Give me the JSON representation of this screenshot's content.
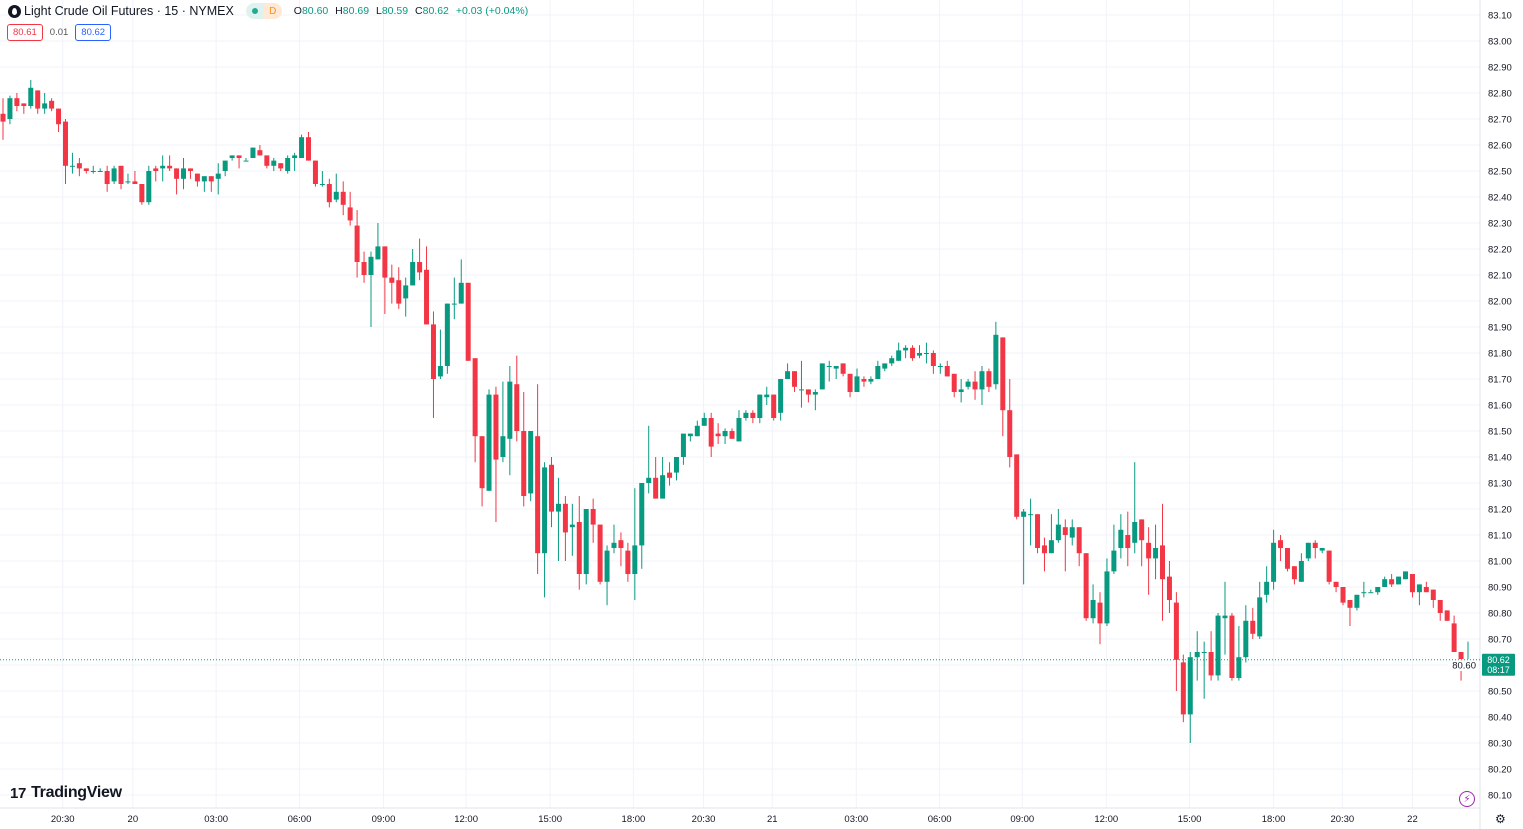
{
  "header": {
    "title": "Light Crude Oil Futures · 15 · NYMEX",
    "status_label": "D",
    "ohlc": {
      "o_label": "O",
      "o": "80.60",
      "h_label": "H",
      "h": "80.69",
      "l_label": "L",
      "l": "80.59",
      "c_label": "C",
      "c": "80.62",
      "change": "+0.03 (+0.04%)"
    },
    "sell_price": "80.61",
    "spread": "0.01",
    "buy_price": "80.62"
  },
  "brand": {
    "mark": "17",
    "name": "TradingView"
  },
  "icons": {
    "symbol": "oil-drop-icon",
    "lightning": "lightning-icon",
    "settings": "gear-icon"
  },
  "colors": {
    "up": "#089981",
    "down": "#f23645",
    "grid": "#f0f3fa",
    "last_price": "#089981"
  },
  "chart_data": {
    "type": "candlestick",
    "title": "Light Crude Oil Futures · 15 · NYMEX",
    "ylim": [
      80.1,
      83.1
    ],
    "yticks": [
      "83.10",
      "83.00",
      "82.90",
      "82.80",
      "82.70",
      "82.60",
      "82.50",
      "82.40",
      "82.30",
      "82.20",
      "82.10",
      "82.00",
      "81.90",
      "81.80",
      "81.70",
      "81.60",
      "81.50",
      "81.40",
      "81.30",
      "81.20",
      "81.10",
      "81.00",
      "80.90",
      "80.80",
      "80.70",
      "80.60",
      "80.50",
      "80.40",
      "80.30",
      "80.20",
      "80.10"
    ],
    "xticks": [
      {
        "label": "20:30",
        "bar": 8.6
      },
      {
        "label": "20",
        "bar": 18.7
      },
      {
        "label": "03:00",
        "bar": 30.7
      },
      {
        "label": "06:00",
        "bar": 42.7
      },
      {
        "label": "09:00",
        "bar": 54.8
      },
      {
        "label": "12:00",
        "bar": 66.7
      },
      {
        "label": "15:00",
        "bar": 78.8
      },
      {
        "label": "18:00",
        "bar": 90.8
      },
      {
        "label": "20:30",
        "bar": 100.9
      },
      {
        "label": "21",
        "bar": 110.8
      },
      {
        "label": "03:00",
        "bar": 122.9
      },
      {
        "label": "06:00",
        "bar": 134.9
      },
      {
        "label": "09:00",
        "bar": 146.8
      },
      {
        "label": "12:00",
        "bar": 158.9
      },
      {
        "label": "15:00",
        "bar": 170.9
      },
      {
        "label": "18:00",
        "bar": 183.0
      },
      {
        "label": "20:30",
        "bar": 192.9
      },
      {
        "label": "22",
        "bar": 203.0
      }
    ],
    "last_price": {
      "value": 80.62,
      "label": "80.62",
      "countdown": "08:17"
    },
    "candles_ohlc": [
      [
        82.72,
        82.78,
        82.62,
        82.69
      ],
      [
        82.7,
        82.79,
        82.68,
        82.78
      ],
      [
        82.78,
        82.8,
        82.73,
        82.75
      ],
      [
        82.76,
        82.76,
        82.72,
        82.75
      ],
      [
        82.75,
        82.85,
        82.74,
        82.82
      ],
      [
        82.81,
        82.81,
        82.72,
        82.74
      ],
      [
        82.74,
        82.8,
        82.72,
        82.76
      ],
      [
        82.77,
        82.78,
        82.73,
        82.74
      ],
      [
        82.74,
        82.74,
        82.65,
        82.68
      ],
      [
        82.69,
        82.7,
        82.45,
        82.52
      ],
      [
        82.52,
        82.57,
        82.49,
        82.52
      ],
      [
        82.53,
        82.55,
        82.48,
        82.51
      ],
      [
        82.51,
        82.51,
        82.49,
        82.5
      ],
      [
        82.5,
        82.52,
        82.49,
        82.5
      ],
      [
        82.5,
        82.51,
        82.5,
        82.5
      ],
      [
        82.5,
        82.52,
        82.42,
        82.45
      ],
      [
        82.46,
        82.52,
        82.45,
        82.51
      ],
      [
        82.52,
        82.52,
        82.43,
        82.45
      ],
      [
        82.46,
        82.49,
        82.45,
        82.46
      ],
      [
        82.46,
        82.5,
        82.45,
        82.45
      ],
      [
        82.45,
        82.45,
        82.37,
        82.38
      ],
      [
        82.38,
        82.52,
        82.37,
        82.5
      ],
      [
        82.51,
        82.52,
        82.46,
        82.5
      ],
      [
        82.51,
        82.56,
        82.46,
        82.52
      ],
      [
        82.52,
        82.56,
        82.5,
        82.51
      ],
      [
        82.51,
        82.51,
        82.41,
        82.47
      ],
      [
        82.47,
        82.55,
        82.43,
        82.51
      ],
      [
        82.51,
        82.51,
        82.47,
        82.5
      ],
      [
        82.49,
        82.49,
        82.44,
        82.46
      ],
      [
        82.46,
        82.48,
        82.42,
        82.48
      ],
      [
        82.48,
        82.48,
        82.42,
        82.46
      ],
      [
        82.47,
        82.53,
        82.41,
        82.49
      ],
      [
        82.5,
        82.54,
        82.48,
        82.54
      ],
      [
        82.55,
        82.56,
        82.54,
        82.56
      ],
      [
        82.56,
        82.56,
        82.51,
        82.55
      ],
      [
        82.54,
        82.55,
        82.54,
        82.54
      ],
      [
        82.55,
        82.59,
        82.55,
        82.59
      ],
      [
        82.58,
        82.6,
        82.56,
        82.56
      ],
      [
        82.56,
        82.56,
        82.51,
        82.52
      ],
      [
        82.52,
        82.55,
        82.5,
        82.54
      ],
      [
        82.53,
        82.53,
        82.5,
        82.51
      ],
      [
        82.5,
        82.56,
        82.49,
        82.55
      ],
      [
        82.55,
        82.57,
        82.5,
        82.56
      ],
      [
        82.55,
        82.64,
        82.55,
        82.63
      ],
      [
        82.63,
        82.65,
        82.54,
        82.54
      ],
      [
        82.54,
        82.54,
        82.44,
        82.45
      ],
      [
        82.45,
        82.5,
        82.44,
        82.45
      ],
      [
        82.45,
        82.47,
        82.36,
        82.38
      ],
      [
        82.39,
        82.49,
        82.38,
        82.42
      ],
      [
        82.42,
        82.46,
        82.33,
        82.37
      ],
      [
        82.36,
        82.42,
        82.29,
        82.31
      ],
      [
        82.29,
        82.35,
        82.09,
        82.15
      ],
      [
        82.15,
        82.19,
        82.07,
        82.1
      ],
      [
        82.1,
        82.19,
        81.9,
        82.17
      ],
      [
        82.16,
        82.3,
        82.16,
        82.21
      ],
      [
        82.21,
        82.21,
        81.95,
        82.09
      ],
      [
        82.09,
        82.14,
        81.99,
        82.07
      ],
      [
        82.08,
        82.13,
        81.97,
        81.99
      ],
      [
        82.01,
        82.09,
        81.94,
        82.06
      ],
      [
        82.06,
        82.2,
        82.06,
        82.15
      ],
      [
        82.15,
        82.24,
        82.08,
        82.11
      ],
      [
        82.12,
        82.21,
        81.91,
        81.91
      ],
      [
        81.91,
        81.96,
        81.55,
        81.7
      ],
      [
        81.71,
        81.89,
        81.7,
        81.75
      ],
      [
        81.75,
        81.99,
        81.72,
        81.99
      ],
      [
        81.99,
        82.09,
        81.93,
        81.99
      ],
      [
        81.99,
        82.16,
        81.99,
        82.07
      ],
      [
        82.07,
        82.07,
        81.77,
        81.77
      ],
      [
        81.78,
        81.78,
        81.38,
        81.48
      ],
      [
        81.48,
        81.48,
        81.21,
        81.28
      ],
      [
        81.27,
        81.66,
        81.27,
        81.64
      ],
      [
        81.64,
        81.67,
        81.15,
        81.39
      ],
      [
        81.4,
        81.69,
        81.38,
        81.48
      ],
      [
        81.47,
        81.75,
        81.33,
        81.69
      ],
      [
        81.68,
        81.79,
        81.46,
        81.5
      ],
      [
        81.5,
        81.65,
        81.21,
        81.25
      ],
      [
        81.26,
        81.5,
        81.23,
        81.5
      ],
      [
        81.48,
        81.68,
        80.95,
        81.03
      ],
      [
        81.03,
        81.38,
        80.86,
        81.36
      ],
      [
        81.37,
        81.4,
        81.13,
        81.19
      ],
      [
        81.19,
        81.32,
        81.0,
        81.22
      ],
      [
        81.22,
        81.25,
        81.0,
        81.11
      ],
      [
        81.13,
        81.22,
        81.02,
        81.14
      ],
      [
        81.15,
        81.25,
        80.89,
        80.95
      ],
      [
        80.95,
        81.2,
        80.91,
        81.2
      ],
      [
        81.2,
        81.24,
        81.07,
        81.14
      ],
      [
        81.14,
        81.14,
        80.91,
        80.92
      ],
      [
        80.92,
        81.06,
        80.83,
        81.04
      ],
      [
        81.05,
        81.14,
        81.03,
        81.07
      ],
      [
        81.08,
        81.11,
        80.98,
        81.05
      ],
      [
        81.04,
        81.07,
        80.92,
        80.95
      ],
      [
        80.95,
        81.28,
        80.85,
        81.06
      ],
      [
        81.06,
        81.3,
        80.97,
        81.3
      ],
      [
        81.3,
        81.52,
        81.26,
        81.32
      ],
      [
        81.32,
        81.4,
        81.24,
        81.24
      ],
      [
        81.24,
        81.4,
        81.24,
        81.33
      ],
      [
        81.34,
        81.38,
        81.29,
        81.32
      ],
      [
        81.34,
        81.4,
        81.31,
        81.4
      ],
      [
        81.4,
        81.49,
        81.37,
        81.49
      ],
      [
        81.48,
        81.49,
        81.46,
        81.49
      ],
      [
        81.48,
        81.54,
        81.48,
        81.52
      ],
      [
        81.52,
        81.57,
        81.52,
        81.55
      ],
      [
        81.55,
        81.57,
        81.4,
        81.44
      ],
      [
        81.49,
        81.53,
        81.45,
        81.48
      ],
      [
        81.48,
        81.51,
        81.45,
        81.5
      ],
      [
        81.5,
        81.51,
        81.47,
        81.47
      ],
      [
        81.46,
        81.58,
        81.46,
        81.55
      ],
      [
        81.55,
        81.58,
        81.54,
        81.57
      ],
      [
        81.57,
        81.58,
        81.53,
        81.55
      ],
      [
        81.55,
        81.64,
        81.53,
        81.64
      ],
      [
        81.63,
        81.67,
        81.6,
        81.64
      ],
      [
        81.64,
        81.64,
        81.54,
        81.55
      ],
      [
        81.57,
        81.7,
        81.54,
        81.7
      ],
      [
        81.7,
        81.76,
        81.7,
        81.73
      ],
      [
        81.73,
        81.73,
        81.65,
        81.67
      ],
      [
        81.66,
        81.77,
        81.59,
        81.66
      ],
      [
        81.66,
        81.66,
        81.61,
        81.64
      ],
      [
        81.64,
        81.66,
        81.58,
        81.65
      ],
      [
        81.66,
        81.76,
        81.66,
        81.76
      ],
      [
        81.75,
        81.77,
        81.69,
        81.75
      ],
      [
        81.74,
        81.75,
        81.7,
        81.75
      ],
      [
        81.76,
        81.76,
        81.71,
        81.72
      ],
      [
        81.72,
        81.72,
        81.63,
        81.65
      ],
      [
        81.65,
        81.74,
        81.65,
        81.71
      ],
      [
        81.7,
        81.71,
        81.67,
        81.69
      ],
      [
        81.69,
        81.71,
        81.68,
        81.7
      ],
      [
        81.7,
        81.77,
        81.7,
        81.75
      ],
      [
        81.74,
        81.76,
        81.73,
        81.76
      ],
      [
        81.76,
        81.79,
        81.75,
        81.78
      ],
      [
        81.77,
        81.84,
        81.77,
        81.81
      ],
      [
        81.81,
        81.83,
        81.78,
        81.82
      ],
      [
        81.82,
        81.83,
        81.77,
        81.78
      ],
      [
        81.79,
        81.83,
        81.78,
        81.8
      ],
      [
        81.8,
        81.84,
        81.76,
        81.8
      ],
      [
        81.8,
        81.81,
        81.72,
        81.75
      ],
      [
        81.75,
        81.76,
        81.72,
        81.75
      ],
      [
        81.75,
        81.77,
        81.71,
        81.71
      ],
      [
        81.72,
        81.72,
        81.63,
        81.65
      ],
      [
        81.65,
        81.7,
        81.61,
        81.66
      ],
      [
        81.67,
        81.7,
        81.66,
        81.69
      ],
      [
        81.69,
        81.73,
        81.62,
        81.66
      ],
      [
        81.66,
        81.75,
        81.6,
        81.73
      ],
      [
        81.73,
        81.74,
        81.65,
        81.67
      ],
      [
        81.68,
        81.92,
        81.66,
        81.87
      ],
      [
        81.86,
        81.86,
        81.48,
        81.58
      ],
      [
        81.58,
        81.7,
        81.36,
        81.4
      ],
      [
        81.41,
        81.41,
        81.16,
        81.17
      ],
      [
        81.17,
        81.2,
        80.91,
        81.19
      ],
      [
        81.18,
        81.24,
        81.06,
        81.18
      ],
      [
        81.18,
        81.18,
        81.03,
        81.05
      ],
      [
        81.06,
        81.09,
        80.96,
        81.03
      ],
      [
        81.03,
        81.18,
        81.03,
        81.08
      ],
      [
        81.08,
        81.2,
        81.07,
        81.14
      ],
      [
        81.13,
        81.16,
        80.96,
        81.1
      ],
      [
        81.09,
        81.16,
        81.06,
        81.13
      ],
      [
        81.13,
        81.13,
        80.98,
        81.03
      ],
      [
        81.03,
        81.03,
        80.77,
        80.78
      ],
      [
        80.78,
        80.91,
        80.76,
        80.85
      ],
      [
        80.84,
        80.88,
        80.68,
        80.76
      ],
      [
        80.76,
        81.01,
        80.75,
        80.96
      ],
      [
        80.96,
        81.14,
        80.95,
        81.04
      ],
      [
        81.05,
        81.18,
        81.01,
        81.12
      ],
      [
        81.1,
        81.19,
        80.98,
        81.05
      ],
      [
        81.07,
        81.38,
        81.03,
        81.15
      ],
      [
        81.16,
        81.16,
        80.98,
        81.08
      ],
      [
        81.07,
        81.13,
        80.87,
        81.01
      ],
      [
        81.01,
        81.14,
        80.93,
        81.05
      ],
      [
        81.06,
        81.22,
        80.77,
        80.93
      ],
      [
        80.94,
        81.0,
        80.8,
        80.85
      ],
      [
        80.84,
        80.88,
        80.5,
        80.62
      ],
      [
        80.61,
        80.64,
        80.38,
        80.41
      ],
      [
        80.41,
        80.65,
        80.3,
        80.63
      ],
      [
        80.63,
        80.73,
        80.54,
        80.65
      ],
      [
        80.65,
        80.69,
        80.47,
        80.65
      ],
      [
        80.65,
        80.73,
        80.54,
        80.56
      ],
      [
        80.56,
        80.8,
        80.54,
        80.79
      ],
      [
        80.78,
        80.92,
        80.64,
        80.79
      ],
      [
        80.79,
        80.8,
        80.54,
        80.55
      ],
      [
        80.55,
        80.75,
        80.54,
        80.63
      ],
      [
        80.63,
        80.83,
        80.61,
        80.77
      ],
      [
        80.77,
        80.82,
        80.7,
        80.72
      ],
      [
        80.71,
        80.92,
        80.7,
        80.86
      ],
      [
        80.87,
        80.98,
        80.84,
        80.92
      ],
      [
        80.92,
        81.12,
        80.89,
        81.07
      ],
      [
        81.08,
        81.1,
        81.0,
        81.05
      ],
      [
        81.05,
        81.05,
        80.96,
        80.97
      ],
      [
        80.98,
        80.98,
        80.91,
        80.93
      ],
      [
        80.92,
        81.03,
        80.92,
        81.0
      ],
      [
        81.01,
        81.07,
        81.0,
        81.07
      ],
      [
        81.07,
        81.08,
        81.01,
        81.05
      ],
      [
        81.04,
        81.05,
        81.03,
        81.05
      ],
      [
        81.04,
        81.04,
        80.91,
        80.92
      ],
      [
        80.92,
        80.92,
        80.88,
        80.9
      ],
      [
        80.9,
        80.9,
        80.83,
        80.84
      ],
      [
        80.85,
        80.85,
        80.75,
        80.82
      ],
      [
        80.82,
        80.87,
        80.81,
        80.87
      ],
      [
        80.88,
        80.92,
        80.86,
        80.88
      ],
      [
        80.88,
        80.89,
        80.88,
        80.88
      ],
      [
        80.88,
        80.9,
        80.87,
        80.9
      ],
      [
        80.9,
        80.94,
        80.9,
        80.93
      ],
      [
        80.93,
        80.95,
        80.9,
        80.91
      ],
      [
        80.91,
        80.94,
        80.91,
        80.94
      ],
      [
        80.93,
        80.96,
        80.93,
        80.96
      ],
      [
        80.95,
        80.95,
        80.86,
        80.88
      ],
      [
        80.88,
        80.91,
        80.83,
        80.91
      ],
      [
        80.9,
        80.92,
        80.88,
        80.88
      ],
      [
        80.89,
        80.89,
        80.82,
        80.85
      ],
      [
        80.85,
        80.85,
        80.77,
        80.8
      ],
      [
        80.81,
        80.81,
        80.77,
        80.77
      ],
      [
        80.76,
        80.79,
        80.65,
        80.65
      ],
      [
        80.65,
        80.65,
        80.54,
        80.59
      ],
      [
        80.6,
        80.69,
        80.59,
        80.62
      ]
    ]
  }
}
